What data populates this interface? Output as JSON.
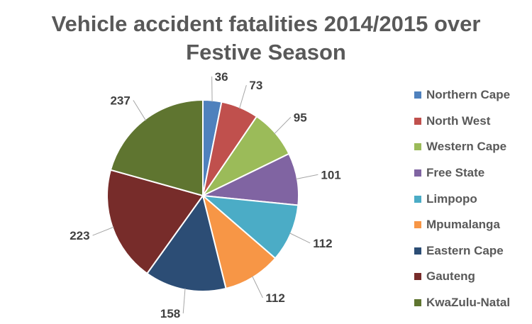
{
  "chart_data": {
    "type": "pie",
    "title_lines": [
      "Vehicle accident fatalities 2014/2015 over",
      "Festive Season"
    ],
    "legend_position": "right",
    "slices": [
      {
        "label": "Northern Cape",
        "value": 36,
        "color": "#4F81BD"
      },
      {
        "label": "North West",
        "value": 73,
        "color": "#C0504D"
      },
      {
        "label": "Western Cape",
        "value": 95,
        "color": "#9BBB59"
      },
      {
        "label": "Free State",
        "value": 101,
        "color": "#8064A2"
      },
      {
        "label": "Limpopo",
        "value": 112,
        "color": "#4BACC6"
      },
      {
        "label": "Mpumalanga",
        "value": 112,
        "color": "#F79646"
      },
      {
        "label": "Eastern Cape",
        "value": 158,
        "color": "#2C4D75"
      },
      {
        "label": "Gauteng",
        "value": 223,
        "color": "#772C2A"
      },
      {
        "label": "KwaZulu-Natal",
        "value": 237,
        "color": "#5F7530"
      }
    ]
  }
}
